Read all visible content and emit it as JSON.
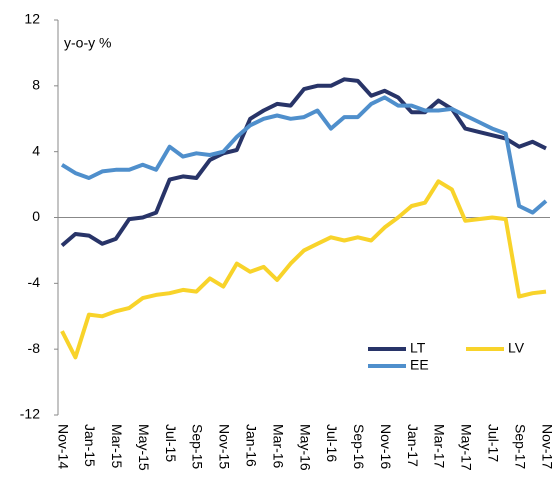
{
  "chart_data": {
    "type": "line",
    "annotation": "y-o-y %",
    "categories": [
      "Nov-14",
      null,
      "Jan-15",
      null,
      "Mar-15",
      null,
      "May-15",
      null,
      "Jul-15",
      null,
      "Sep-15",
      null,
      "Nov-15",
      null,
      "Jan-16",
      null,
      "Mar-16",
      null,
      "May-16",
      null,
      "Jul-16",
      null,
      "Sep-16",
      null,
      "Nov-16",
      null,
      "Jan-17",
      null,
      "Mar-17",
      null,
      "May-17",
      null,
      "Jul-17",
      null,
      "Sep-17",
      null,
      "Nov-17"
    ],
    "series": [
      {
        "name": "LT",
        "color": "#283468",
        "values": [
          -1.7,
          -1.0,
          -1.1,
          -1.6,
          -1.3,
          -0.1,
          0.0,
          0.3,
          2.3,
          2.5,
          2.4,
          3.5,
          3.9,
          4.1,
          6.0,
          6.5,
          6.9,
          6.8,
          7.8,
          8.0,
          8.0,
          8.4,
          8.3,
          7.4,
          7.7,
          7.3,
          6.4,
          6.4,
          7.1,
          6.6,
          5.4,
          5.2,
          5.0,
          4.8,
          4.3,
          4.6,
          4.2
        ]
      },
      {
        "name": "LV",
        "color": "#f8d32a",
        "values": [
          -6.9,
          -8.5,
          -5.9,
          -6.0,
          -5.7,
          -5.5,
          -4.9,
          -4.7,
          -4.6,
          -4.4,
          -4.5,
          -3.7,
          -4.2,
          -2.8,
          -3.3,
          -3.0,
          -3.8,
          -2.8,
          -2.0,
          -1.6,
          -1.2,
          -1.4,
          -1.2,
          -1.4,
          -0.6,
          0.0,
          0.7,
          0.9,
          2.2,
          1.7,
          -0.2,
          -0.1,
          0.0,
          -0.1,
          -4.8,
          -4.6,
          -4.5
        ]
      },
      {
        "name": "EE",
        "color": "#4f8fcc",
        "values": [
          3.2,
          2.7,
          2.4,
          2.8,
          2.9,
          2.9,
          3.2,
          2.9,
          4.3,
          3.7,
          3.9,
          3.8,
          4.0,
          4.9,
          5.6,
          6.0,
          6.2,
          6.0,
          6.1,
          6.5,
          5.4,
          6.1,
          6.1,
          6.9,
          7.3,
          6.8,
          6.8,
          6.5,
          6.5,
          6.6,
          6.2,
          5.8,
          5.4,
          5.1,
          0.7,
          0.3,
          1.0
        ]
      }
    ],
    "ylim": [
      -12,
      12
    ],
    "yticks": [
      12,
      8,
      4,
      0,
      -4,
      -8,
      -12
    ],
    "grid": false
  }
}
